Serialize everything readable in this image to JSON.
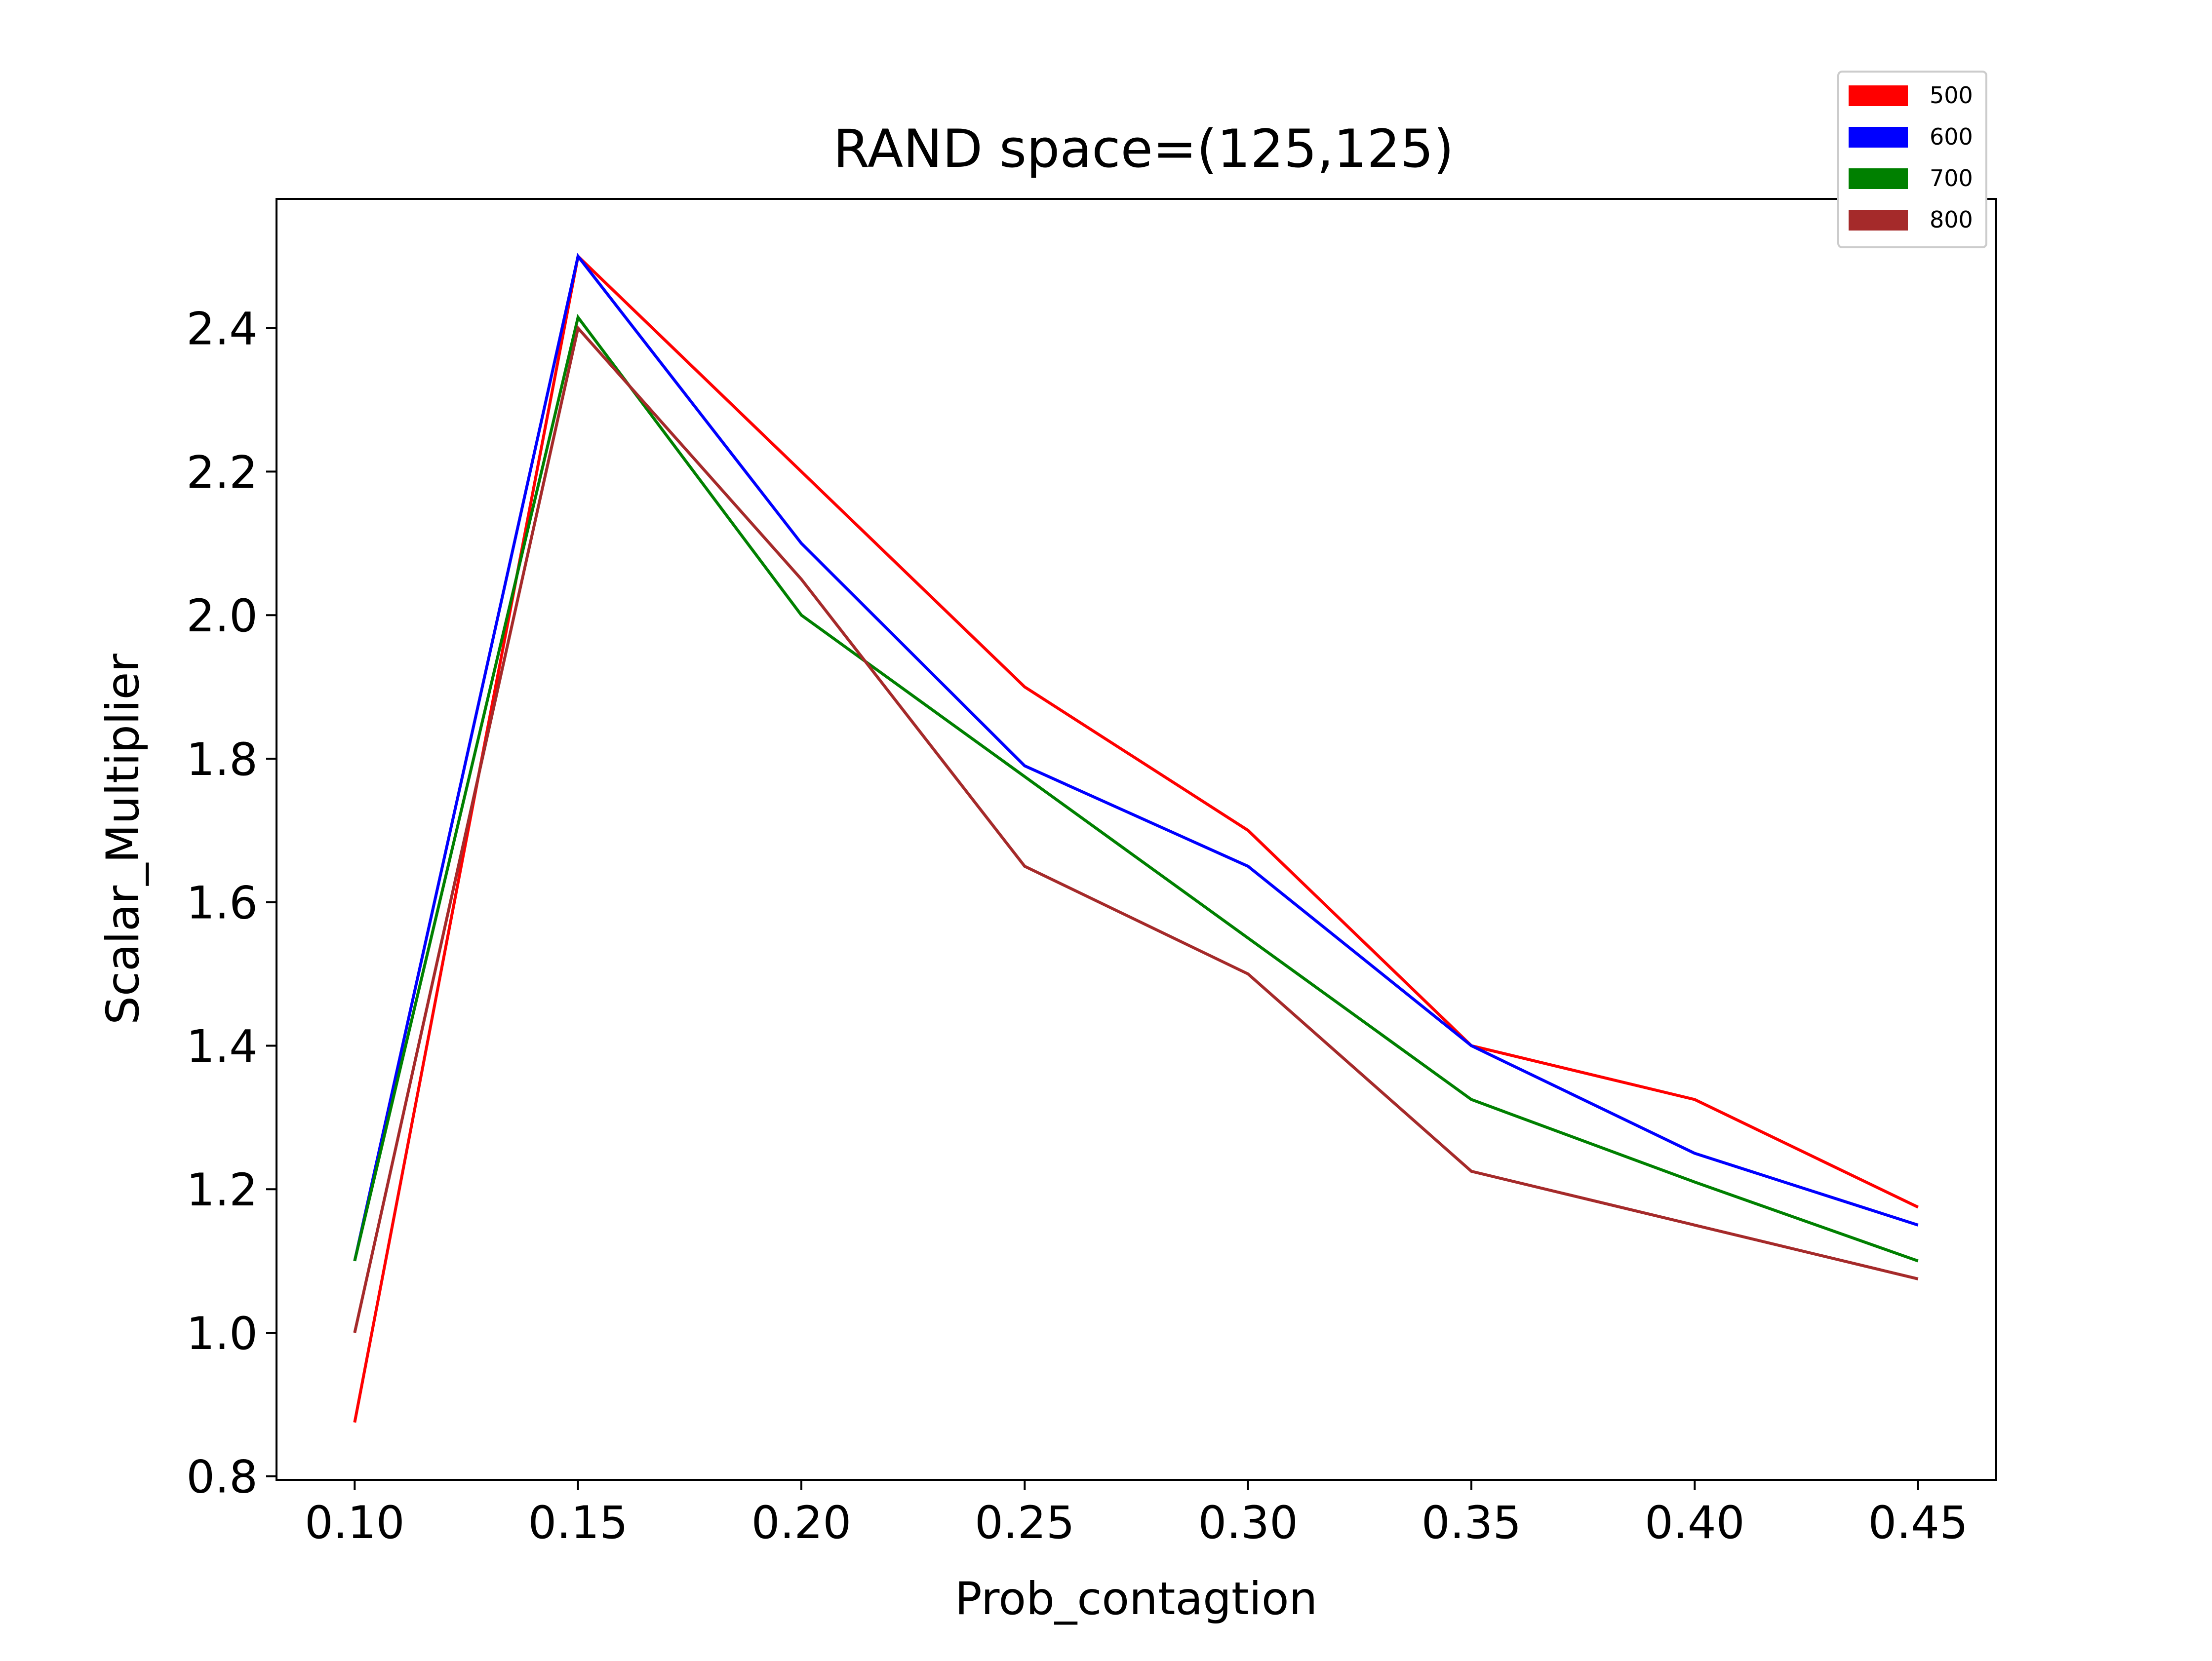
{
  "chart_data": {
    "type": "line",
    "title": "RAND space=(125,125)",
    "xlabel": "Prob_contagtion",
    "ylabel": "Scalar_Multiplier",
    "x": [
      0.1,
      0.15,
      0.2,
      0.25,
      0.3,
      0.35,
      0.4,
      0.45
    ],
    "x_tick_labels": [
      "0.10",
      "0.15",
      "0.20",
      "0.25",
      "0.30",
      "0.35",
      "0.40",
      "0.45"
    ],
    "y_ticks": [
      0.8,
      1.0,
      1.2,
      1.4,
      1.6,
      1.8,
      2.0,
      2.2,
      2.4
    ],
    "y_tick_labels": [
      "0.8",
      "1.0",
      "1.2",
      "1.4",
      "1.6",
      "1.8",
      "2.0",
      "2.2",
      "2.4"
    ],
    "xlim": [
      0.0825,
      0.4675
    ],
    "ylim": [
      0.795,
      2.58
    ],
    "grid": false,
    "legend_position": "top-right",
    "series": [
      {
        "name": "500",
        "color": "#ff0000",
        "values": [
          0.875,
          2.5,
          2.2,
          1.9,
          1.7,
          1.4,
          1.325,
          1.175
        ]
      },
      {
        "name": "600",
        "color": "#0000ff",
        "values": [
          1.1,
          2.5,
          2.1,
          1.79,
          1.65,
          1.4,
          1.25,
          1.15
        ]
      },
      {
        "name": "700",
        "color": "#008000",
        "values": [
          1.1,
          2.415,
          2.0,
          1.775,
          1.55,
          1.325,
          1.21,
          1.1
        ]
      },
      {
        "name": "800",
        "color": "#a52a2a",
        "values": [
          1.0,
          2.4,
          2.05,
          1.65,
          1.5,
          1.225,
          1.15,
          1.075
        ]
      }
    ]
  }
}
